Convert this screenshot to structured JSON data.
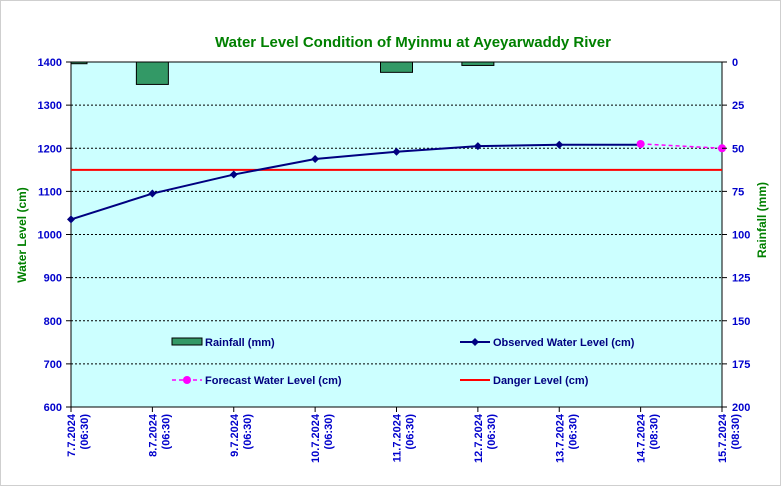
{
  "chart_data": {
    "type": "line",
    "title": "Water Level Condition of Myinmu at Ayeyarwaddy River",
    "ylabel": "Water Level (cm)",
    "y2label": "Rainfall (mm)",
    "ylim": [
      600,
      1400
    ],
    "y2lim": [
      0,
      200
    ],
    "yticks": [
      "600",
      "700",
      "800",
      "900",
      "1000",
      "1100",
      "1200",
      "1300",
      "1400"
    ],
    "y2ticks": [
      "0",
      "25",
      "50",
      "75",
      "100",
      "125",
      "150",
      "175",
      "200"
    ],
    "categories": [
      [
        "7.7.2024",
        "(06:30)"
      ],
      [
        "8.7.2024",
        "(06:30)"
      ],
      [
        "9.7.2024",
        "(06:30)"
      ],
      [
        "10.7.2024",
        "(06:30)"
      ],
      [
        "11.7.2024",
        "(06:30)"
      ],
      [
        "12.7.2024",
        "(06:30)"
      ],
      [
        "13.7.2024",
        "(06:30)"
      ],
      [
        "14.7.2024",
        "(08:30)"
      ],
      [
        "15.7.2024",
        "(08:30)"
      ]
    ],
    "grid": true,
    "legend_position": "inside-bottom",
    "series": [
      {
        "name": "Rainfall (mm)",
        "type": "bar",
        "axis": "right",
        "color": "#339966",
        "values": [
          1,
          13,
          0,
          0,
          6,
          2,
          0,
          0,
          0
        ]
      },
      {
        "name": "Observed Water Level (cm)",
        "type": "line",
        "color": "#000080",
        "marker": "diamond",
        "values": [
          1035,
          1095,
          1139,
          1175,
          1192,
          1205,
          1208,
          1208,
          null
        ]
      },
      {
        "name": "Forecast Water Level (cm)",
        "type": "line",
        "color": "#FF00FF",
        "dashed": true,
        "marker": "circle",
        "values": [
          null,
          null,
          null,
          null,
          null,
          null,
          null,
          1210,
          1200
        ]
      },
      {
        "name": "Danger Level (cm)",
        "type": "hline",
        "color": "#FF0000",
        "value": 1150
      }
    ],
    "colors": {
      "plot_background": "#CCFFFF",
      "title": "#008000",
      "axis_title": "#008000",
      "tick_labels": "#0000CC"
    }
  }
}
